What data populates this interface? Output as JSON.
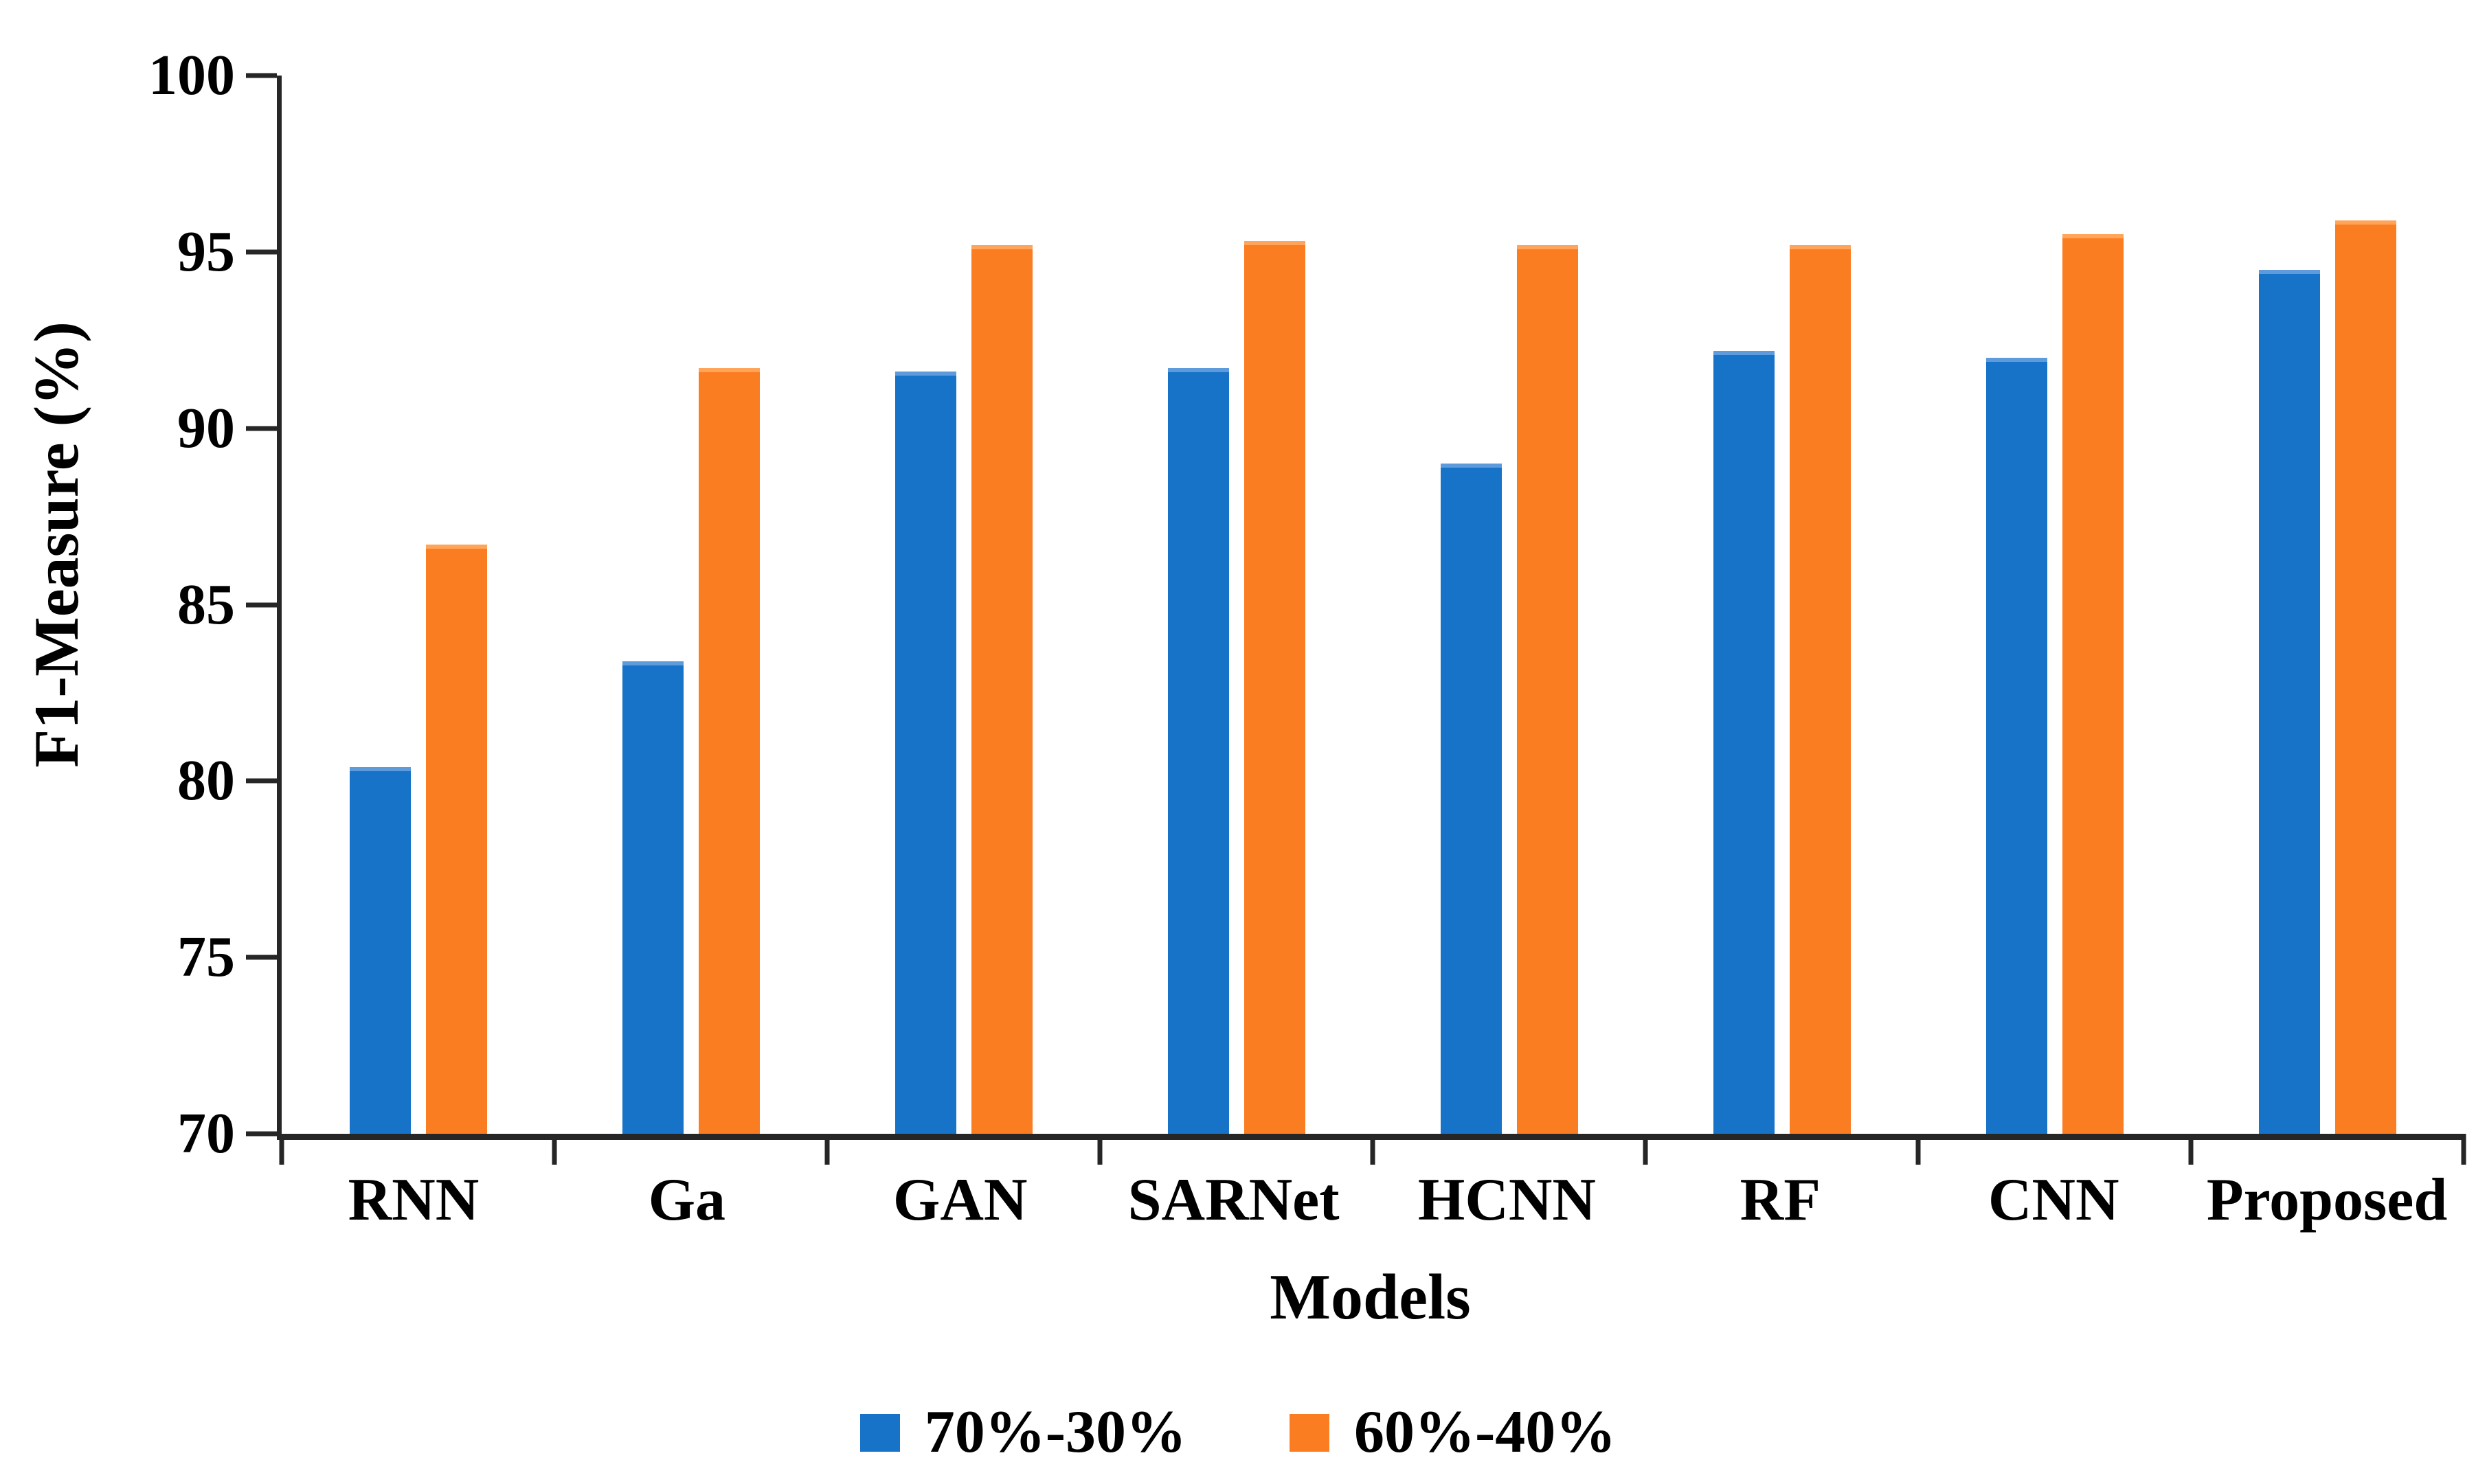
{
  "figure": {
    "background": "#ffffff"
  },
  "chart_data": {
    "type": "bar",
    "title": "",
    "xlabel": "Models",
    "ylabel": "F1-Measure (%)",
    "ylim": [
      70,
      100
    ],
    "yticks": [
      70,
      75,
      80,
      85,
      90,
      95,
      100
    ],
    "grid": false,
    "legend_position": "bottom-center",
    "axis_color": "#262626",
    "categories": [
      "RNN",
      "Ga",
      "GAN",
      "SARNet",
      "HCNN",
      "RF",
      "CNN",
      "Proposed"
    ],
    "series": [
      {
        "name": "70%-30%",
        "color": "#1673C8",
        "values": [
          80.4,
          83.4,
          91.6,
          91.7,
          89.0,
          92.2,
          92.0,
          94.5
        ]
      },
      {
        "name": "60%-40%",
        "color": "#FB7D22",
        "values": [
          86.7,
          91.7,
          95.2,
          95.3,
          95.2,
          95.2,
          95.5,
          95.9
        ]
      }
    ]
  }
}
